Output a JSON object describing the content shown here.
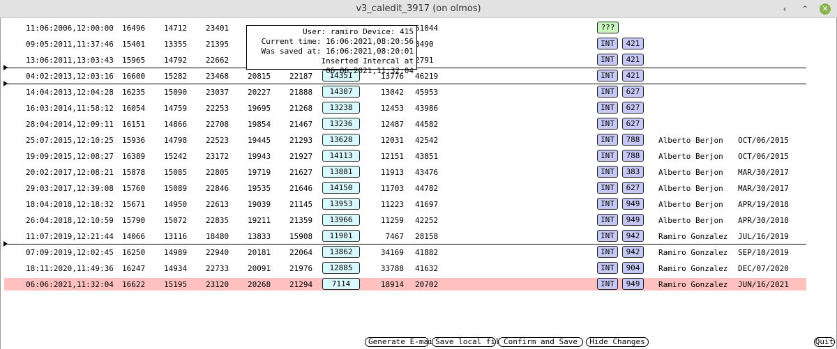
{
  "window": {
    "title": "v3_caledit_3917 (on olmos)",
    "minimize_glyph": "‹",
    "maximize_glyph": "⌃",
    "close_glyph": "✕"
  },
  "tooltip": {
    "line1": "User: ramiro Device: 415",
    "line2": "Current time: 16:06:2021,08:20:56",
    "line3": "Was saved at: 16:06:2021,08:20:01",
    "line4": "Inserted Intercal at 06:06:2021,11:32:04"
  },
  "rows": [
    {
      "date": "11:06:2006,12:00:00",
      "n1": "16496",
      "n2": "14712",
      "n3": "23401",
      "n4": "",
      "n5": "",
      "n6": "",
      "n7": "",
      "n8": "51044",
      "tag1": "???",
      "tag2": "",
      "name": "",
      "date2": ""
    },
    {
      "date": "09:05:2011,11:37:46",
      "n1": "15401",
      "n2": "13355",
      "n3": "21395",
      "n4": "",
      "n5": "",
      "n6": "",
      "n7": "",
      "n8": "8490",
      "tag1": "INT",
      "tag2": "421",
      "name": "",
      "date2": ""
    },
    {
      "date": "13:06:2011,13:03:43",
      "n1": "15965",
      "n2": "14792",
      "n3": "22662",
      "n4": "",
      "n5": "",
      "n6": "",
      "n7": "",
      "n8": "2791",
      "tag1": "INT",
      "tag2": "421",
      "name": "",
      "date2": ""
    },
    {
      "date": "04:02:2013,12:03:16",
      "n1": "16600",
      "n2": "15282",
      "n3": "23468",
      "n4": "20815",
      "n5": "22187",
      "n6": "14351",
      "n7": "13776",
      "n8": "46219",
      "tag1": "INT",
      "tag2": "421",
      "name": "",
      "date2": ""
    },
    {
      "date": "14:04:2013,12:04:28",
      "n1": "16235",
      "n2": "15090",
      "n3": "23037",
      "n4": "20227",
      "n5": "21888",
      "n6": "14307",
      "n7": "13042",
      "n8": "45953",
      "tag1": "INT",
      "tag2": "627",
      "name": "",
      "date2": ""
    },
    {
      "date": "16:03:2014,11:58:12",
      "n1": "16054",
      "n2": "14759",
      "n3": "22253",
      "n4": "19695",
      "n5": "21268",
      "n6": "13238",
      "n7": "12453",
      "n8": "43986",
      "tag1": "INT",
      "tag2": "627",
      "name": "",
      "date2": ""
    },
    {
      "date": "28:04:2014,12:09:11",
      "n1": "16151",
      "n2": "14866",
      "n3": "22708",
      "n4": "19854",
      "n5": "21467",
      "n6": "13236",
      "n7": "12487",
      "n8": "44582",
      "tag1": "INT",
      "tag2": "627",
      "name": "",
      "date2": ""
    },
    {
      "date": "25:07:2015,12:10:25",
      "n1": "15936",
      "n2": "14798",
      "n3": "22523",
      "n4": "19445",
      "n5": "21293",
      "n6": "13628",
      "n7": "12031",
      "n8": "42542",
      "tag1": "INT",
      "tag2": "788",
      "name": "Alberto Berjon",
      "date2": "OCT/06/2015"
    },
    {
      "date": "19:09:2015,12:08:27",
      "n1": "16389",
      "n2": "15242",
      "n3": "23172",
      "n4": "19943",
      "n5": "21927",
      "n6": "14113",
      "n7": "12151",
      "n8": "43851",
      "tag1": "INT",
      "tag2": "788",
      "name": "Alberto Berjon",
      "date2": "OCT/06/2015"
    },
    {
      "date": "20:02:2017,12:08:21",
      "n1": "15878",
      "n2": "15085",
      "n3": "22805",
      "n4": "19719",
      "n5": "21627",
      "n6": "13881",
      "n7": "11913",
      "n8": "43476",
      "tag1": "INT",
      "tag2": "383",
      "name": "Alberto Berjon",
      "date2": "MAR/30/2017"
    },
    {
      "date": "29:03:2017,12:39:08",
      "n1": "15760",
      "n2": "15089",
      "n3": "22846",
      "n4": "19535",
      "n5": "21646",
      "n6": "14150",
      "n7": "11703",
      "n8": "44782",
      "tag1": "INT",
      "tag2": "627",
      "name": "Alberto Berjon",
      "date2": "MAR/30/2017"
    },
    {
      "date": "18:04:2018,12:18:32",
      "n1": "15671",
      "n2": "14950",
      "n3": "22613",
      "n4": "19039",
      "n5": "21145",
      "n6": "13953",
      "n7": "11223",
      "n8": "41697",
      "tag1": "INT",
      "tag2": "949",
      "name": "Alberto Berjon",
      "date2": "APR/19/2018"
    },
    {
      "date": "26:04:2018,12:10:59",
      "n1": "15790",
      "n2": "15072",
      "n3": "22835",
      "n4": "19211",
      "n5": "21359",
      "n6": "13966",
      "n7": "11259",
      "n8": "42252",
      "tag1": "INT",
      "tag2": "949",
      "name": "Alberto Berjon",
      "date2": "APR/30/2018"
    },
    {
      "date": "11:07:2019,12:21:44",
      "n1": "14066",
      "n2": "13116",
      "n3": "18480",
      "n4": "13833",
      "n5": "15908",
      "n6": "11901",
      "n7": "7467",
      "n8": "28158",
      "tag1": "INT",
      "tag2": "942",
      "name": "Ramiro Gonzalez",
      "date2": "JUL/16/2019"
    },
    {
      "date": "07:09:2019,12:02:45",
      "n1": "16250",
      "n2": "14989",
      "n3": "22940",
      "n4": "20181",
      "n5": "22064",
      "n6": "13862",
      "n7": "34169",
      "n8": "41882",
      "tag1": "INT",
      "tag2": "942",
      "name": "Ramiro Gonzalez",
      "date2": "SEP/10/2019"
    },
    {
      "date": "18:11:2020,11:49:36",
      "n1": "16247",
      "n2": "14934",
      "n3": "22733",
      "n4": "20091",
      "n5": "21976",
      "n6": "12885",
      "n7": "33788",
      "n8": "41632",
      "tag1": "INT",
      "tag2": "904",
      "name": "Ramiro Gonzalez",
      "date2": "DEC/07/2020"
    },
    {
      "date": "06:06:2021,11:32:04",
      "n1": "16622",
      "n2": "15195",
      "n3": "23120",
      "n4": "20268",
      "n5": "21294",
      "n6": "7114",
      "n7": "18914",
      "n8": "20702",
      "tag1": "INT",
      "tag2": "949",
      "name": "Ramiro Gonzalez",
      "date2": "JUN/16/2021"
    }
  ],
  "buttons": {
    "generate_email": "Generate E-mail",
    "save_local": "Save local file",
    "confirm_save": "Confirm and Save",
    "hide_changes": "Hide Changes",
    "quit": "Quit"
  }
}
